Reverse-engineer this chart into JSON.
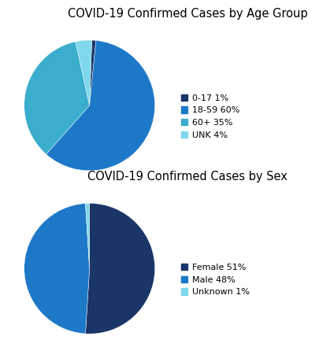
{
  "age_title": "COVID-19 Confirmed Cases by Age Group",
  "age_labels": [
    "0-17 1%",
    "18-59 60%",
    "60+ 35%",
    "UNK 4%"
  ],
  "age_values": [
    1,
    60,
    35,
    4
  ],
  "age_colors": [
    "#1a3568",
    "#1e78c8",
    "#3aaecc",
    "#7fd8eb"
  ],
  "age_startangle": 88,
  "sex_title": "COVID-19 Confirmed Cases by Sex",
  "sex_labels": [
    "Female 51%",
    "Male 48%",
    "Unknown 1%"
  ],
  "sex_values": [
    51,
    48,
    1
  ],
  "sex_colors": [
    "#1a3568",
    "#1e78c8",
    "#7fd8eb"
  ],
  "sex_startangle": 90,
  "legend_fontsize": 8,
  "title_fontsize": 10.5,
  "background_color": "#ffffff"
}
